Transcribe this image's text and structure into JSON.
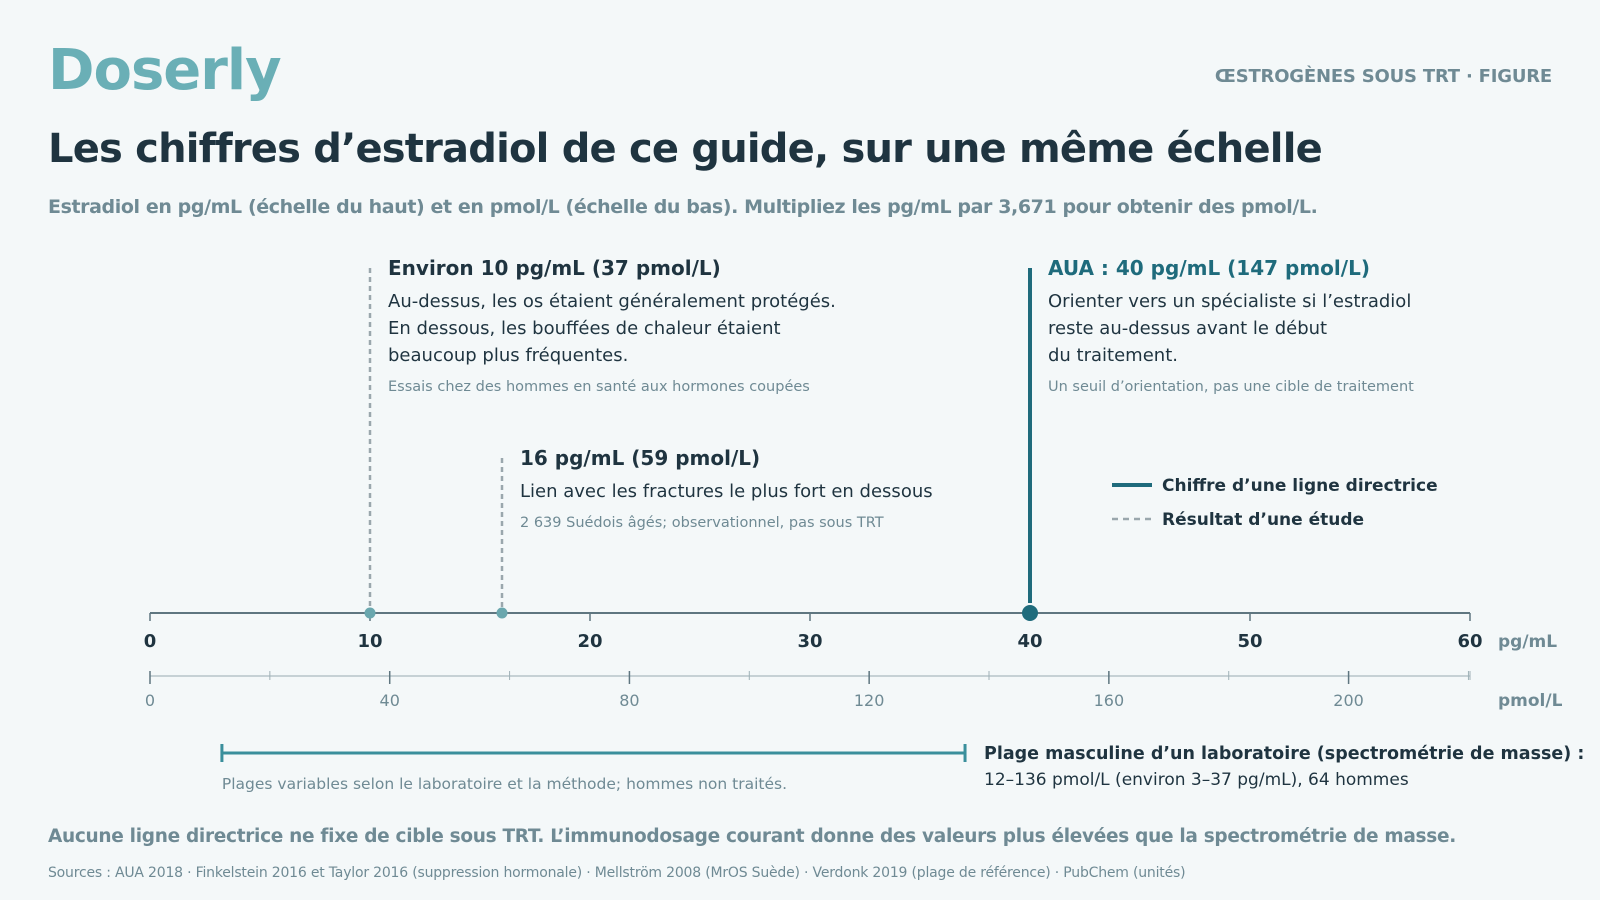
{
  "header": {
    "brand": "Doserly",
    "kicker": "ŒSTROGÈNES SOUS TRT · FIGURE",
    "title": "Les chiffres d’estradiol de ce guide, sur une même échelle",
    "subtitle": "Estradiol en pg/mL (échelle du haut) et en pmol/L (échelle du bas). Multipliez les pg/mL par 3,671 pour obtenir des pmol/L."
  },
  "colors": {
    "brand": "#6aafb6",
    "guideline": "#1f6b7c",
    "study": "#9aa7ad",
    "axis": "#5f7680",
    "range": "#3a8f9c",
    "text_dark": "#1f3440",
    "text_muted": "#6f8a94"
  },
  "chart_data": {
    "type": "number-line",
    "top_axis": {
      "unit": "pg/mL",
      "min": 0,
      "max": 60,
      "ticks": [
        0,
        10,
        20,
        30,
        40,
        50,
        60
      ]
    },
    "bottom_axis": {
      "unit": "pmol/L",
      "min": 0,
      "max": 220.26,
      "ticks": [
        0,
        40,
        80,
        120,
        160,
        200
      ],
      "minor_step": 20
    },
    "conversion_factor": 3.671,
    "markers": [
      {
        "id": "m10",
        "value": 10,
        "kind": "study",
        "title": "Environ 10 pg/mL (37 pmol/L)",
        "lines": [
          "Au-dessus, les os étaient généralement protégés.",
          "En dessous, les bouffées de chaleur étaient",
          "beaucoup plus fréquentes."
        ],
        "note": "Essais chez des hommes en santé aux hormones coupées"
      },
      {
        "id": "m16",
        "value": 16,
        "kind": "study",
        "title": "16 pg/mL (59 pmol/L)",
        "lines": [
          "Lien avec les fractures le plus fort en dessous"
        ],
        "note": "2 639 Suédois âgés; observationnel, pas sous TRT"
      },
      {
        "id": "m40",
        "value": 40,
        "kind": "guideline",
        "title": "AUA : 40 pg/mL (147 pmol/L)",
        "lines": [
          "Orienter vers un spécialiste si l’estradiol",
          "reste au-dessus avant le début",
          "du traitement."
        ],
        "note": "Un seuil d’orientation, pas une cible de traitement"
      }
    ],
    "legend": [
      {
        "kind": "guideline",
        "label": "Chiffre d’une ligne directrice"
      },
      {
        "kind": "study",
        "label": "Résultat d’une étude"
      }
    ],
    "reference_range": {
      "pmol_min": 12,
      "pmol_max": 136,
      "title": "Plage masculine d’un laboratoire (spectrométrie de masse) :",
      "detail": "12–136 pmol/L (environ 3–37 pg/mL), 64 hommes",
      "note": "Plages variables selon le laboratoire et la méthode; hommes non traités."
    }
  },
  "footer": {
    "note": "Aucune ligne directrice ne fixe de cible sous TRT. L’immunodosage courant donne des valeurs plus élevées que la spectrométrie de masse.",
    "sources": "Sources : AUA 2018 · Finkelstein 2016 et Taylor 2016 (suppression hormonale) · Mellström 2008 (MrOS Suède) · Verdonk 2019 (plage de référence) · PubChem (unités)"
  }
}
